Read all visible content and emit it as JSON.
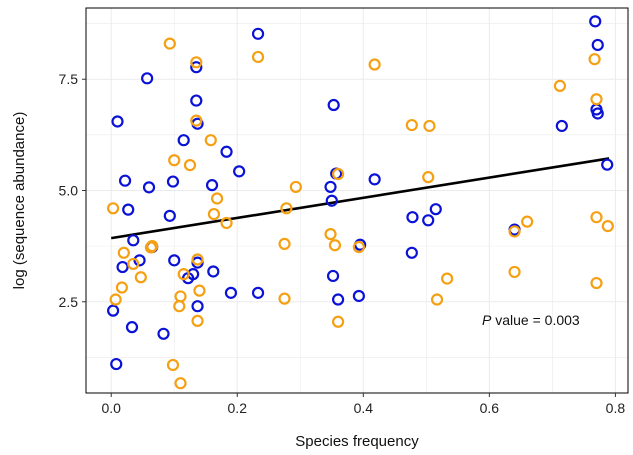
{
  "chart_data": {
    "type": "scatter",
    "title": "",
    "xlabel": "Species frequency",
    "ylabel": "log (sequence abundance)",
    "xlim": [
      -0.04,
      0.82
    ],
    "ylim": [
      0.45,
      9.1
    ],
    "xticks": [
      0.0,
      0.2,
      0.4,
      0.6,
      0.8
    ],
    "xtick_labels": [
      "0.0",
      "0.2",
      "0.4",
      "0.6",
      "0.8"
    ],
    "yticks": [
      2.5,
      5.0,
      7.5
    ],
    "ytick_labels": [
      "2.5",
      "5.0",
      "7.5"
    ],
    "grid": true,
    "legend": "none",
    "annotation": {
      "italic": "P",
      "text": " value = 0.003"
    },
    "colors": {
      "series_blue": "#0a12d6",
      "series_orange": "#f5a012",
      "fit": "#000000",
      "grid": "#ebebeb"
    },
    "series": [
      {
        "color": "#0a12d6",
        "x": [
          0.003,
          0.008,
          0.01,
          0.018,
          0.022,
          0.027,
          0.033,
          0.035,
          0.045,
          0.057,
          0.06,
          0.065,
          0.083,
          0.093,
          0.098,
          0.1,
          0.115,
          0.122,
          0.13,
          0.135,
          0.135,
          0.137,
          0.137,
          0.137,
          0.16,
          0.162,
          0.183,
          0.19,
          0.203,
          0.233,
          0.233,
          0.348,
          0.35,
          0.352,
          0.353,
          0.357,
          0.36,
          0.393,
          0.395,
          0.418,
          0.477,
          0.478,
          0.503,
          0.515,
          0.64,
          0.715,
          0.768,
          0.77,
          0.772,
          0.772,
          0.787
        ],
        "y": [
          2.3,
          1.1,
          6.55,
          3.28,
          5.22,
          4.57,
          1.93,
          3.88,
          3.43,
          7.52,
          5.07,
          3.73,
          1.78,
          4.43,
          5.2,
          3.43,
          6.13,
          3.03,
          3.12,
          7.77,
          7.02,
          6.5,
          3.38,
          2.4,
          5.12,
          3.18,
          5.87,
          2.7,
          5.43,
          2.7,
          8.52,
          5.08,
          4.77,
          3.08,
          6.92,
          5.38,
          2.55,
          2.63,
          3.78,
          5.25,
          3.6,
          4.4,
          4.33,
          4.58,
          4.12,
          6.45,
          8.8,
          6.82,
          8.27,
          6.73,
          5.58
        ]
      },
      {
        "color": "#f5a012",
        "x": [
          0.003,
          0.007,
          0.017,
          0.02,
          0.035,
          0.047,
          0.063,
          0.065,
          0.093,
          0.098,
          0.1,
          0.108,
          0.11,
          0.11,
          0.115,
          0.125,
          0.135,
          0.135,
          0.137,
          0.137,
          0.14,
          0.158,
          0.163,
          0.168,
          0.183,
          0.233,
          0.275,
          0.275,
          0.278,
          0.293,
          0.348,
          0.355,
          0.36,
          0.36,
          0.393,
          0.418,
          0.477,
          0.503,
          0.505,
          0.517,
          0.533,
          0.64,
          0.64,
          0.66,
          0.712,
          0.767,
          0.77,
          0.77,
          0.77,
          0.788
        ],
        "y": [
          4.6,
          2.55,
          2.82,
          3.6,
          3.35,
          3.05,
          3.72,
          3.75,
          8.3,
          1.08,
          5.68,
          2.4,
          2.62,
          0.67,
          3.12,
          5.57,
          7.88,
          6.57,
          2.07,
          3.45,
          2.75,
          6.13,
          4.47,
          4.82,
          4.27,
          8.0,
          2.57,
          3.8,
          4.6,
          5.08,
          4.02,
          3.77,
          5.37,
          2.05,
          3.73,
          7.83,
          6.47,
          5.3,
          6.45,
          2.55,
          3.02,
          4.08,
          3.17,
          4.3,
          7.35,
          7.95,
          7.05,
          4.4,
          2.92,
          4.2
        ]
      }
    ],
    "fit_line": {
      "x": [
        0.0,
        0.79
      ],
      "y": [
        3.93,
        5.72
      ]
    }
  }
}
